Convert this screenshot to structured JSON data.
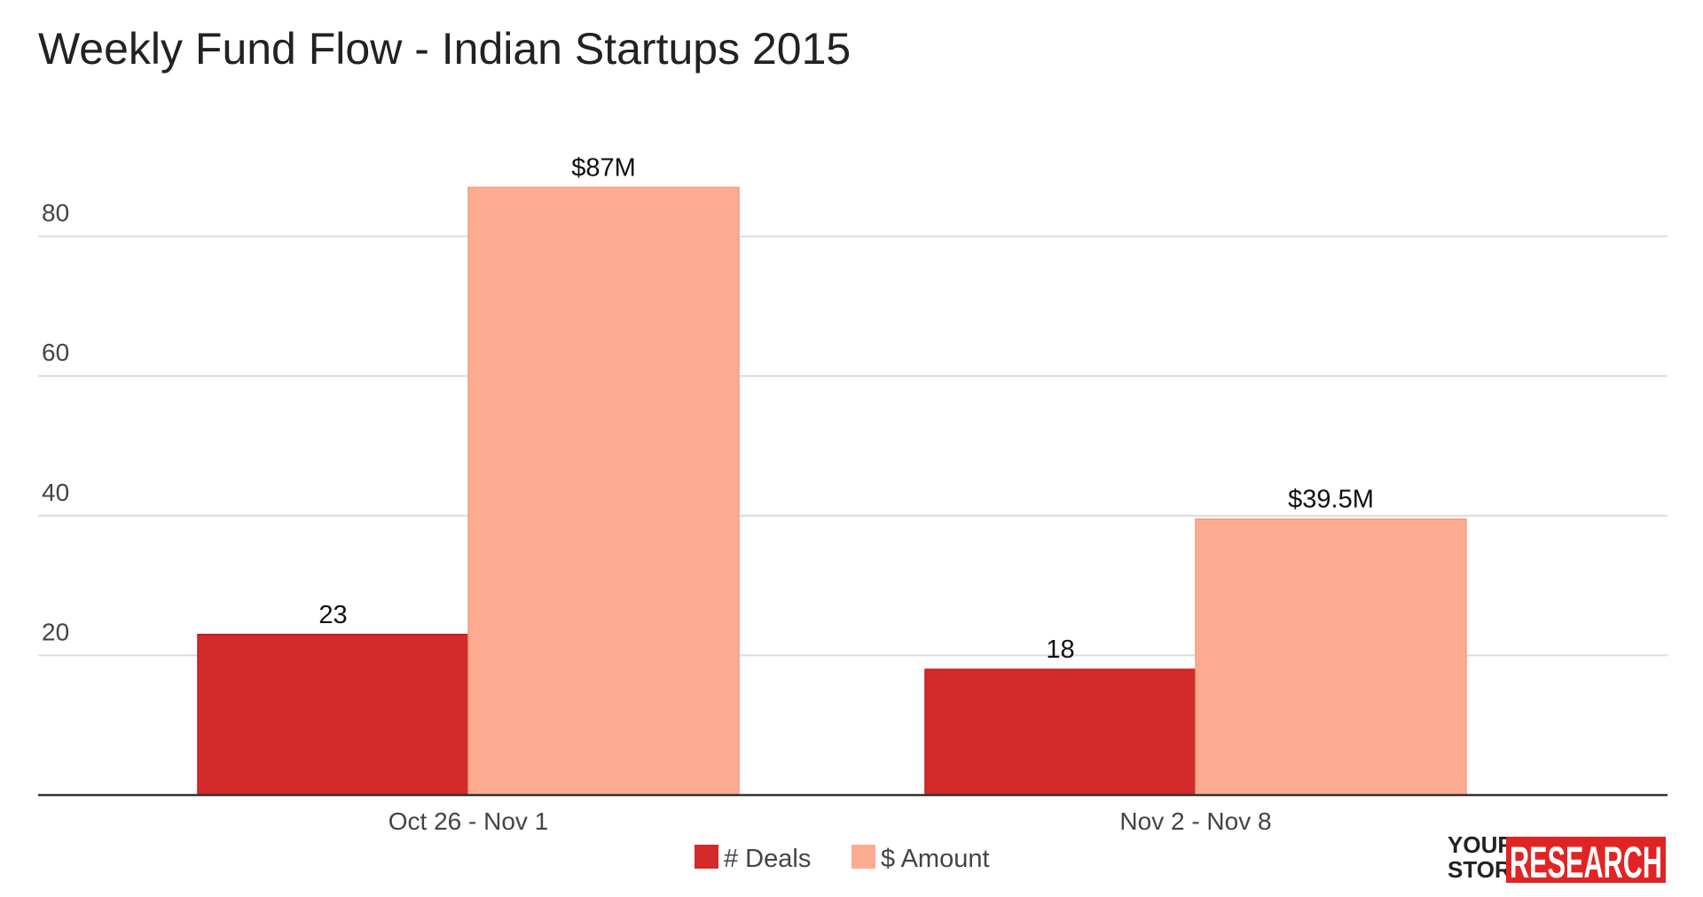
{
  "chart_data": {
    "type": "bar",
    "title": "Weekly Fund Flow - Indian Startups 2015",
    "categories": [
      "Oct 26 - Nov 1",
      "Nov 2 - Nov 8"
    ],
    "series": [
      {
        "name": "# Deals",
        "color": "#d42a2a",
        "values": [
          23,
          18
        ],
        "labels": [
          "23",
          "18"
        ]
      },
      {
        "name": "$ Amount",
        "color": "#fcab90",
        "values": [
          87,
          39.5
        ],
        "labels": [
          "$87M",
          "$39.5M"
        ]
      }
    ],
    "yticks": [
      20,
      40,
      60,
      80
    ],
    "ylim": [
      0,
      90
    ],
    "grid": true,
    "legend_position": "bottom-center",
    "xlabel": "",
    "ylabel": ""
  },
  "branding": {
    "logo_top": "YOUR",
    "logo_bottom": "STORY",
    "logo_main": "RESEARCH",
    "logo_color": "#e02424"
  }
}
